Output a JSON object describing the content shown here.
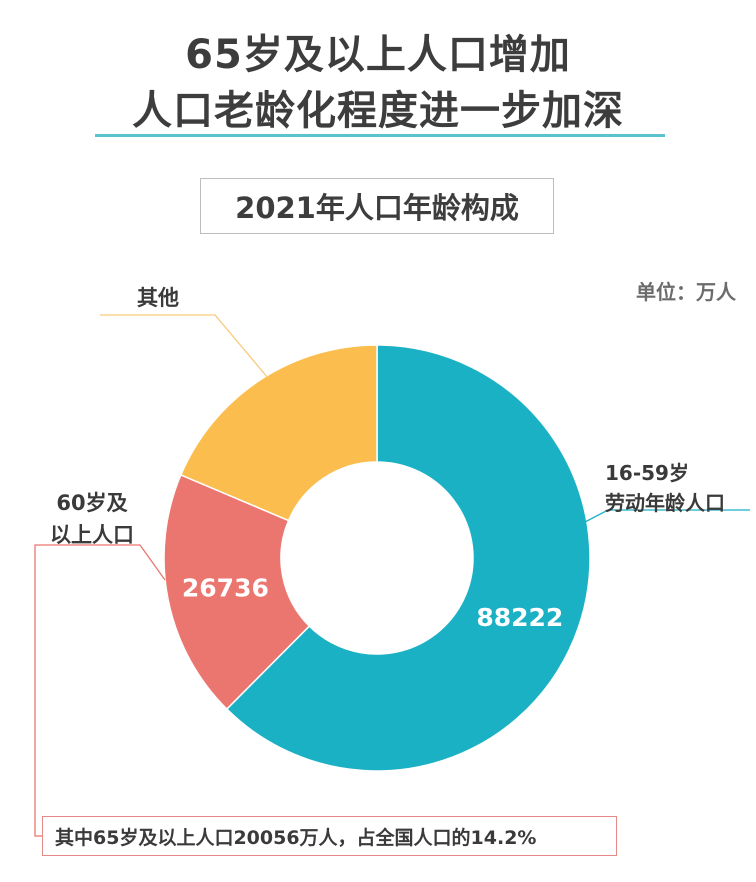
{
  "header": {
    "title_line1": "65岁及以上人口增加",
    "title_line2": "人口老龄化程度进一步加深",
    "subtitle": "2021年人口年龄构成"
  },
  "unit": "单位：万人",
  "note": "其中65岁及以上人口20056万人，占全国人口的14.2%",
  "colors": {
    "working": "#1bb1c5",
    "elderly": "#eb7670",
    "other": "#fbbd4d",
    "rule": "#5bc3cf",
    "other_leader": "#f7c97a"
  },
  "chart_data": {
    "type": "pie",
    "style": "donut",
    "title": "2021年人口年龄构成",
    "unit": "万人",
    "series": [
      {
        "label": "16-59岁劳动年龄人口",
        "label_lines": [
          "16-59岁",
          "劳动年龄人口"
        ],
        "value": 88222,
        "value_label": "88222",
        "color": "#1bb1c5"
      },
      {
        "label": "60岁及以上人口",
        "label_lines": [
          "60岁及",
          "以上人口"
        ],
        "value": 26736,
        "value_label": "26736",
        "color": "#eb7670"
      },
      {
        "label": "其他",
        "label_lines": [
          "其他"
        ],
        "value": 26302,
        "value_label": "",
        "color": "#fbbd4d"
      }
    ],
    "annotation": "其中65岁及以上人口20056万人，占全国人口的14.2%"
  }
}
